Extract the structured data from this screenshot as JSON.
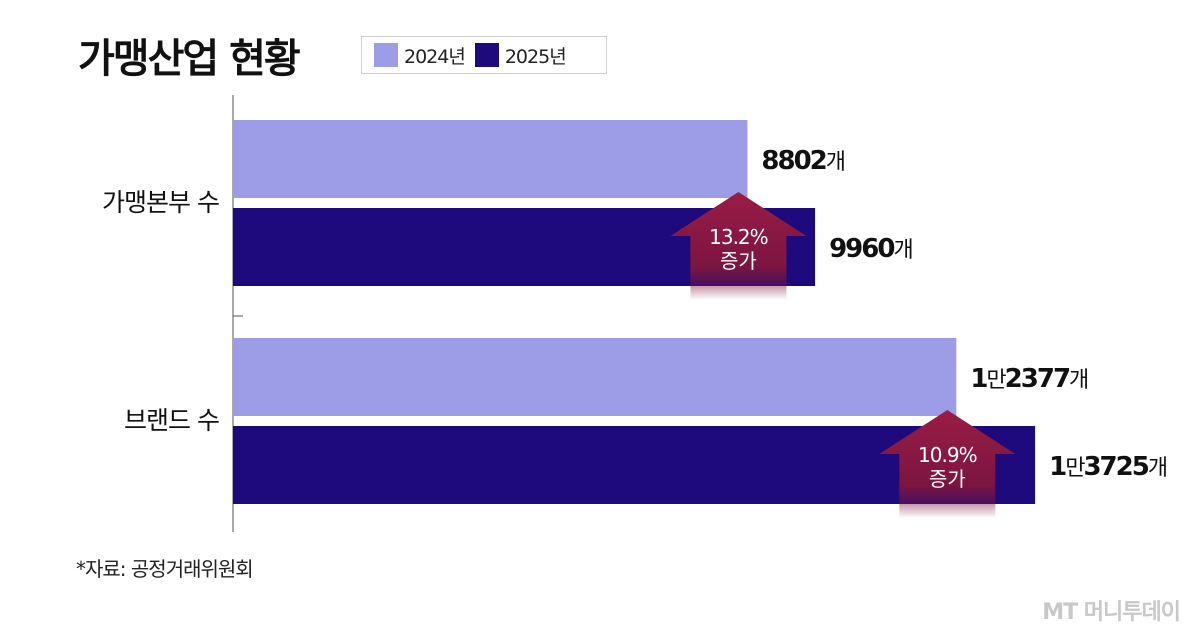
{
  "chart_data": {
    "type": "bar",
    "orientation": "horizontal",
    "title": "가맹산업 현황",
    "categories": [
      "가맹본부 수",
      "브랜드 수"
    ],
    "series": [
      {
        "name": "2024년",
        "values": [
          8802,
          12377
        ],
        "labels": [
          "8802",
          "2377"
        ],
        "label_prefixes": [
          "",
          "1"
        ],
        "label_prefix_units": [
          "",
          "만"
        ],
        "color": "#9d9ce6"
      },
      {
        "name": "2025년",
        "values": [
          9960,
          13725
        ],
        "labels": [
          "9960",
          "3725"
        ],
        "label_prefixes": [
          "",
          "1"
        ],
        "label_prefix_units": [
          "",
          "만"
        ],
        "color": "#1f0a7d"
      }
    ],
    "value_unit": "개",
    "xlim": [
      0,
      15400
    ],
    "annotations": [
      {
        "category": "가맹본부 수",
        "percent": "13.2%",
        "text": "증가"
      },
      {
        "category": "브랜드 수",
        "percent": "10.9%",
        "text": "증가"
      }
    ],
    "legend_position": "top",
    "grid": false
  },
  "source_note": "*자료: 공정거래위원회",
  "watermark": "MT 머니투데이",
  "colors": {
    "series_2024": "#9d9ce6",
    "series_2025": "#1f0a7d",
    "arrow": "#8e1a3e"
  }
}
